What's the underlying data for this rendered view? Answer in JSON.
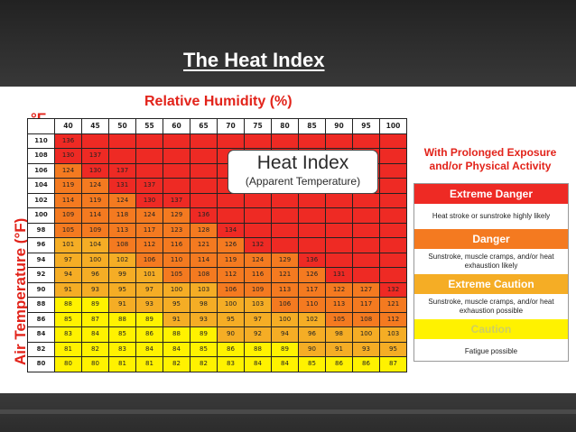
{
  "slide": {
    "title": "The Heat Index"
  },
  "colors": {
    "extreme_danger": "#ee2a24",
    "danger": "#f47a20",
    "extreme_caution": "#f5ad25",
    "caution": "#fff200",
    "caution_text": "#cfcf60",
    "accent_red": "#e2231a"
  },
  "chart_data": {
    "type": "heatmap",
    "title": "Relative Humidity (%)",
    "xlabel": "Relative Humidity (%)",
    "ylabel": "Air Temperature (°F)",
    "unit_label": "°F",
    "box_title": "Heat Index",
    "box_subtitle": "(Apparent Temperature)",
    "humidity": [
      "40",
      "45",
      "50",
      "55",
      "60",
      "65",
      "70",
      "75",
      "80",
      "85",
      "90",
      "95",
      "100"
    ],
    "rows": [
      {
        "temp": "110",
        "values": [
          "136"
        ]
      },
      {
        "temp": "108",
        "values": [
          "130",
          "137"
        ]
      },
      {
        "temp": "106",
        "values": [
          "124",
          "130",
          "137"
        ]
      },
      {
        "temp": "104",
        "values": [
          "119",
          "124",
          "131",
          "137"
        ]
      },
      {
        "temp": "102",
        "values": [
          "114",
          "119",
          "124",
          "130",
          "137"
        ]
      },
      {
        "temp": "100",
        "values": [
          "109",
          "114",
          "118",
          "124",
          "129",
          "136"
        ]
      },
      {
        "temp": "98",
        "values": [
          "105",
          "109",
          "113",
          "117",
          "123",
          "128",
          "134"
        ]
      },
      {
        "temp": "96",
        "values": [
          "101",
          "104",
          "108",
          "112",
          "116",
          "121",
          "126",
          "132"
        ]
      },
      {
        "temp": "94",
        "values": [
          "97",
          "100",
          "102",
          "106",
          "110",
          "114",
          "119",
          "124",
          "129",
          "136"
        ]
      },
      {
        "temp": "92",
        "values": [
          "94",
          "96",
          "99",
          "101",
          "105",
          "108",
          "112",
          "116",
          "121",
          "126",
          "131"
        ]
      },
      {
        "temp": "90",
        "values": [
          "91",
          "93",
          "95",
          "97",
          "100",
          "103",
          "106",
          "109",
          "113",
          "117",
          "122",
          "127",
          "132"
        ]
      },
      {
        "temp": "88",
        "values": [
          "88",
          "89",
          "91",
          "93",
          "95",
          "98",
          "100",
          "103",
          "106",
          "110",
          "113",
          "117",
          "121"
        ]
      },
      {
        "temp": "86",
        "values": [
          "85",
          "87",
          "88",
          "89",
          "91",
          "93",
          "95",
          "97",
          "100",
          "102",
          "105",
          "108",
          "112"
        ]
      },
      {
        "temp": "84",
        "values": [
          "83",
          "84",
          "85",
          "86",
          "88",
          "89",
          "90",
          "92",
          "94",
          "96",
          "98",
          "100",
          "103"
        ]
      },
      {
        "temp": "82",
        "values": [
          "81",
          "82",
          "83",
          "84",
          "84",
          "85",
          "86",
          "88",
          "89",
          "90",
          "91",
          "93",
          "95"
        ]
      },
      {
        "temp": "80",
        "values": [
          "80",
          "80",
          "81",
          "81",
          "82",
          "82",
          "83",
          "84",
          "84",
          "85",
          "86",
          "86",
          "87"
        ]
      }
    ],
    "legend_title": "With Prolonged Exposure and/or Physical Activity",
    "legend": [
      {
        "label": "Extreme Danger",
        "color": "#ee2a24",
        "description": "Heat stroke or sunstroke highly likely"
      },
      {
        "label": "Danger",
        "color": "#f47a20",
        "description": "Sunstroke, muscle cramps, and/or heat exhaustion likely"
      },
      {
        "label": "Extreme Caution",
        "color": "#f5ad25",
        "description": "Sunstroke, muscle cramps, and/or heat exhaustion possible"
      },
      {
        "label": "Caution",
        "color": "#fff200",
        "description": "Fatigue possible"
      }
    ]
  }
}
